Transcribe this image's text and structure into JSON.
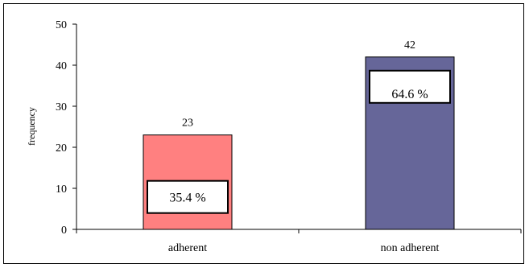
{
  "chart_data": {
    "type": "bar",
    "title": "",
    "xlabel": "",
    "ylabel": "frequency",
    "ylim": [
      0,
      50
    ],
    "yticks": [
      0,
      10,
      20,
      30,
      40,
      50
    ],
    "grid": false,
    "categories": [
      "adherent",
      "non adherent"
    ],
    "values": [
      23,
      42
    ],
    "data_labels": [
      "23",
      "42"
    ],
    "percent_labels": [
      "35.4 %",
      "64.6 %"
    ],
    "colors": [
      "#ff8080",
      "#666699"
    ]
  }
}
